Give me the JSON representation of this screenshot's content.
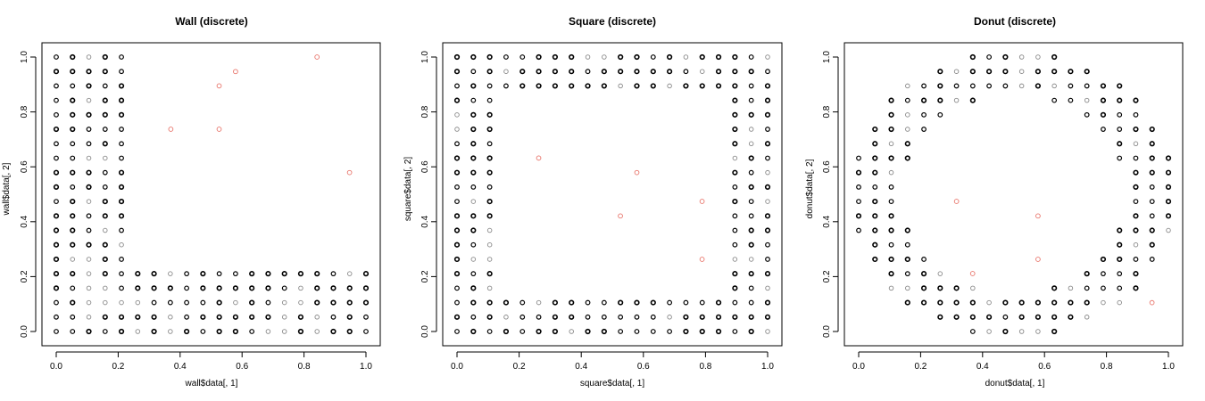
{
  "chart_data": [
    {
      "type": "scatter",
      "title": "Wall (discrete)",
      "xlabel": "wall$data[, 1]",
      "ylabel": "wall$data[, 2]",
      "xlim": [
        0,
        1
      ],
      "ylim": [
        0,
        1
      ],
      "xticks": [
        "0.0",
        "0.2",
        "0.4",
        "0.6",
        "0.8",
        "1.0"
      ],
      "yticks": [
        "0.0",
        "0.2",
        "0.4",
        "0.6",
        "0.8",
        "1.0"
      ],
      "grid": false,
      "legend": "none",
      "pattern": "wall",
      "series": [
        {
          "color_dark": "#000000",
          "color_light": "#8a8a8a",
          "points": "grid-lattice"
        },
        {
          "color": "#e8746a",
          "points": [
            [
              0.37,
              0.737
            ],
            [
              0.526,
              0.737
            ],
            [
              0.526,
              0.895
            ],
            [
              0.579,
              0.947
            ],
            [
              0.842,
              1.0
            ],
            [
              0.947,
              0.579
            ]
          ]
        }
      ]
    },
    {
      "type": "scatter",
      "title": "Square (discrete)",
      "xlabel": "square$data[, 1]",
      "ylabel": "square$data[, 2]",
      "xlim": [
        0,
        1
      ],
      "ylim": [
        0,
        1
      ],
      "xticks": [
        "0.0",
        "0.2",
        "0.4",
        "0.6",
        "0.8",
        "1.0"
      ],
      "yticks": [
        "0.0",
        "0.2",
        "0.4",
        "0.6",
        "0.8",
        "1.0"
      ],
      "grid": false,
      "legend": "none",
      "pattern": "square",
      "series": [
        {
          "color_dark": "#000000",
          "color_light": "#8a8a8a",
          "points": "grid-lattice"
        },
        {
          "color": "#e8746a",
          "points": [
            [
              0.263,
              0.632
            ],
            [
              0.579,
              0.579
            ],
            [
              0.526,
              0.421
            ],
            [
              0.789,
              0.474
            ],
            [
              0.789,
              0.263
            ]
          ]
        }
      ]
    },
    {
      "type": "scatter",
      "title": "Donut (discrete)",
      "xlabel": "donut$data[, 1]",
      "ylabel": "donut$data[, 2]",
      "xlim": [
        0,
        1
      ],
      "ylim": [
        0,
        1
      ],
      "xticks": [
        "0.0",
        "0.2",
        "0.4",
        "0.6",
        "0.8",
        "1.0"
      ],
      "yticks": [
        "0.0",
        "0.2",
        "0.4",
        "0.6",
        "0.8",
        "1.0"
      ],
      "grid": false,
      "legend": "none",
      "pattern": "donut",
      "series": [
        {
          "color_dark": "#000000",
          "color_light": "#8a8a8a",
          "points": "grid-lattice"
        },
        {
          "color": "#e8746a",
          "points": [
            [
              0.316,
              0.474
            ],
            [
              0.579,
              0.421
            ],
            [
              0.579,
              0.263
            ],
            [
              0.368,
              0.211
            ],
            [
              0.947,
              0.105
            ]
          ]
        }
      ]
    }
  ]
}
